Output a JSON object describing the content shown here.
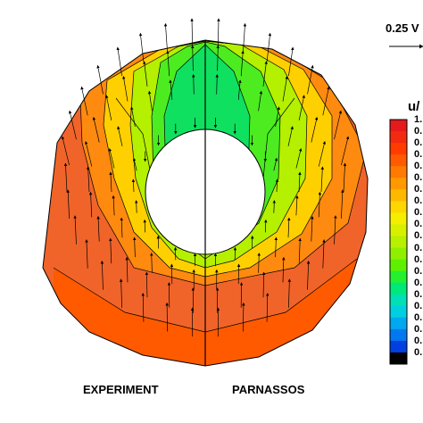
{
  "reference_vector": {
    "label": "0.25 V"
  },
  "legend": {
    "title": "u/",
    "tick_labels": [
      "1.",
      "0.",
      "0.",
      "0.",
      "0.",
      "0.",
      "0.",
      "0.",
      "0.",
      "0.",
      "0.",
      "0.",
      "0.",
      "0.",
      "0.",
      "0.",
      "0.",
      "0.",
      "0.",
      "0.",
      "0."
    ],
    "colors": [
      "#e41a1c",
      "#f22b10",
      "#ff3b00",
      "#ff5a00",
      "#ff7a00",
      "#ff9900",
      "#ffb800",
      "#ffd600",
      "#f5ee00",
      "#d8f000",
      "#b7f000",
      "#8ef000",
      "#5ef000",
      "#24f030",
      "#00e878",
      "#00e0b4",
      "#00cfe0",
      "#00a8f0",
      "#0078f0",
      "#0040e0",
      "#000000"
    ]
  },
  "labels": {
    "experiment": "EXPERIMENT",
    "parnassos": "PARNASSOS"
  },
  "colors": {
    "outer_region": "#f0642a",
    "mid_region": "#ffcc00",
    "inner_region": "#3ce83c",
    "core_region": "#00e060",
    "contour_lines": "#000000"
  }
}
